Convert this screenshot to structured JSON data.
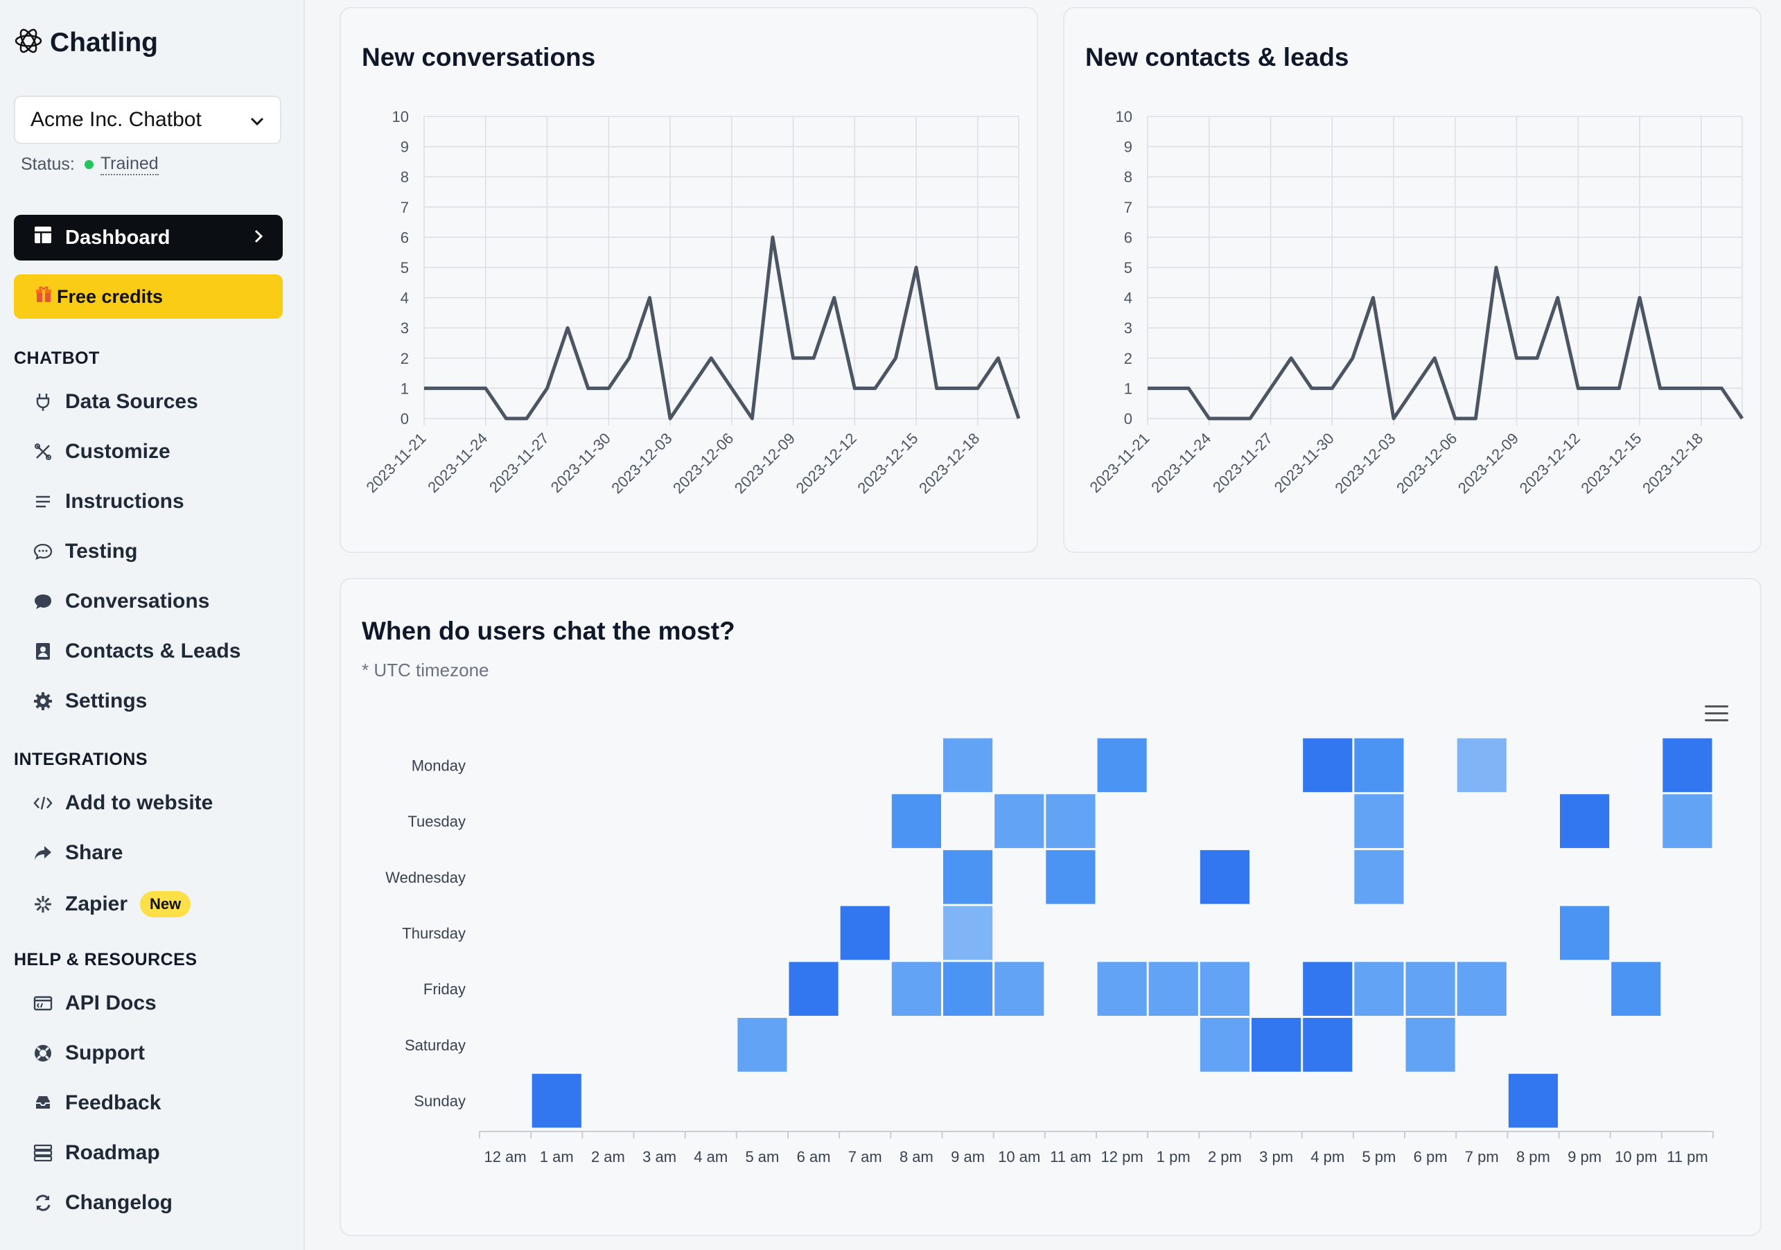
{
  "brand": {
    "name": "Chatling"
  },
  "bot_select": {
    "value": "Acme Inc. Chatbot"
  },
  "status": {
    "label": "Status:",
    "value": "Trained",
    "color": "#22c55e"
  },
  "nav": {
    "dashboard": "Dashboard",
    "free_credits": "Free credits",
    "sections": [
      {
        "title": "CHATBOT",
        "items": [
          {
            "label": "Data Sources",
            "icon": "plug-icon"
          },
          {
            "label": "Customize",
            "icon": "scissors-icon"
          },
          {
            "label": "Instructions",
            "icon": "lines-icon"
          },
          {
            "label": "Testing",
            "icon": "chat-bubble-outline-icon"
          },
          {
            "label": "Conversations",
            "icon": "chat-bubble-icon"
          },
          {
            "label": "Contacts & Leads",
            "icon": "contact-book-icon"
          },
          {
            "label": "Settings",
            "icon": "gear-icon"
          }
        ]
      },
      {
        "title": "INTEGRATIONS",
        "items": [
          {
            "label": "Add to website",
            "icon": "code-icon"
          },
          {
            "label": "Share",
            "icon": "share-arrow-icon"
          },
          {
            "label": "Zapier",
            "icon": "asterisk-icon",
            "badge": "New"
          }
        ]
      },
      {
        "title": "HELP & RESOURCES",
        "items": [
          {
            "label": "API Docs",
            "icon": "api-icon"
          },
          {
            "label": "Support",
            "icon": "lifebuoy-icon"
          },
          {
            "label": "Feedback",
            "icon": "inbox-icon"
          },
          {
            "label": "Roadmap",
            "icon": "list-icon"
          },
          {
            "label": "Changelog",
            "icon": "refresh-icon"
          }
        ]
      }
    ]
  },
  "colors": {
    "line": "#4b5563",
    "accent": "#3b82f6",
    "yellow": "#facc15"
  },
  "chart_data": [
    {
      "type": "line",
      "title": "New conversations",
      "ylim": [
        0,
        10
      ],
      "yticks": [
        0,
        1,
        2,
        3,
        4,
        5,
        6,
        7,
        8,
        9,
        10
      ],
      "x_start": "2023-11-21",
      "x_tick_labels": [
        "2023-11-21",
        "2023-11-24",
        "2023-11-27",
        "2023-11-30",
        "2023-12-03",
        "2023-12-06",
        "2023-12-09",
        "2023-12-12",
        "2023-12-15",
        "2023-12-18"
      ],
      "x": [
        "2023-11-21",
        "2023-11-22",
        "2023-11-23",
        "2023-11-24",
        "2023-11-25",
        "2023-11-26",
        "2023-11-27",
        "2023-11-28",
        "2023-11-29",
        "2023-11-30",
        "2023-12-01",
        "2023-12-02",
        "2023-12-03",
        "2023-12-04",
        "2023-12-05",
        "2023-12-06",
        "2023-12-07",
        "2023-12-08",
        "2023-12-09",
        "2023-12-10",
        "2023-12-11",
        "2023-12-12",
        "2023-12-13",
        "2023-12-14",
        "2023-12-15",
        "2023-12-16",
        "2023-12-17",
        "2023-12-18",
        "2023-12-19",
        "2023-12-20"
      ],
      "values": [
        1,
        1,
        1,
        1,
        0,
        0,
        1,
        3,
        1,
        1,
        2,
        4,
        0,
        1,
        2,
        1,
        0,
        6,
        2,
        2,
        4,
        1,
        1,
        2,
        5,
        1,
        1,
        1,
        2,
        0
      ],
      "grid": true
    },
    {
      "type": "line",
      "title": "New contacts & leads",
      "ylim": [
        0,
        10
      ],
      "yticks": [
        0,
        1,
        2,
        3,
        4,
        5,
        6,
        7,
        8,
        9,
        10
      ],
      "x_start": "2023-11-21",
      "x_tick_labels": [
        "2023-11-21",
        "2023-11-24",
        "2023-11-27",
        "2023-11-30",
        "2023-12-03",
        "2023-12-06",
        "2023-12-09",
        "2023-12-12",
        "2023-12-15",
        "2023-12-18"
      ],
      "x": [
        "2023-11-21",
        "2023-11-22",
        "2023-11-23",
        "2023-11-24",
        "2023-11-25",
        "2023-11-26",
        "2023-11-27",
        "2023-11-28",
        "2023-11-29",
        "2023-11-30",
        "2023-12-01",
        "2023-12-02",
        "2023-12-03",
        "2023-12-04",
        "2023-12-05",
        "2023-12-06",
        "2023-12-07",
        "2023-12-08",
        "2023-12-09",
        "2023-12-10",
        "2023-12-11",
        "2023-12-12",
        "2023-12-13",
        "2023-12-14",
        "2023-12-15",
        "2023-12-16",
        "2023-12-17",
        "2023-12-18",
        "2023-12-19",
        "2023-12-20"
      ],
      "values": [
        1,
        1,
        1,
        0,
        0,
        0,
        1,
        2,
        1,
        1,
        2,
        4,
        0,
        1,
        2,
        0,
        0,
        5,
        2,
        2,
        4,
        1,
        1,
        1,
        4,
        1,
        1,
        1,
        1,
        0
      ],
      "grid": true
    },
    {
      "type": "heatmap",
      "title": "When do users chat the most?",
      "subtitle": "* UTC timezone",
      "rows": [
        "Monday",
        "Tuesday",
        "Wednesday",
        "Thursday",
        "Friday",
        "Saturday",
        "Sunday"
      ],
      "columns": [
        "12 am",
        "1 am",
        "2 am",
        "3 am",
        "4 am",
        "5 am",
        "6 am",
        "7 am",
        "8 am",
        "9 am",
        "10 am",
        "11 am",
        "12 pm",
        "1 pm",
        "2 pm",
        "3 pm",
        "4 pm",
        "5 pm",
        "6 pm",
        "7 pm",
        "8 pm",
        "9 pm",
        "10 pm",
        "11 pm"
      ],
      "values": [
        [
          0,
          0,
          0,
          0,
          0,
          0,
          0,
          0,
          0,
          2,
          0,
          0,
          3,
          0,
          0,
          0,
          4,
          3,
          0,
          1,
          0,
          0,
          0,
          4
        ],
        [
          0,
          0,
          0,
          0,
          0,
          0,
          0,
          0,
          3,
          0,
          2,
          2,
          0,
          0,
          0,
          0,
          0,
          2,
          0,
          0,
          0,
          4,
          0,
          2
        ],
        [
          0,
          0,
          0,
          0,
          0,
          0,
          0,
          0,
          0,
          3,
          0,
          3,
          0,
          0,
          4,
          0,
          0,
          2,
          0,
          0,
          0,
          0,
          0,
          0
        ],
        [
          0,
          0,
          0,
          0,
          0,
          0,
          0,
          4,
          0,
          1,
          0,
          0,
          0,
          0,
          0,
          0,
          0,
          0,
          0,
          0,
          0,
          3,
          0,
          0
        ],
        [
          0,
          0,
          0,
          0,
          0,
          0,
          4,
          0,
          2,
          3,
          2,
          0,
          2,
          2,
          2,
          0,
          4,
          2,
          2,
          2,
          0,
          0,
          3,
          0
        ],
        [
          0,
          0,
          0,
          0,
          0,
          2,
          0,
          0,
          0,
          0,
          0,
          0,
          0,
          0,
          2,
          4,
          4,
          0,
          2,
          0,
          0,
          0,
          0,
          0
        ],
        [
          0,
          4,
          0,
          0,
          0,
          0,
          0,
          0,
          0,
          0,
          0,
          0,
          0,
          0,
          0,
          0,
          0,
          0,
          0,
          0,
          4,
          0,
          0,
          0
        ]
      ],
      "scale_colors": [
        "#f6f8f9",
        "#7fb5f7",
        "#62a3f6",
        "#4b94f3",
        "#3277f0"
      ]
    }
  ]
}
